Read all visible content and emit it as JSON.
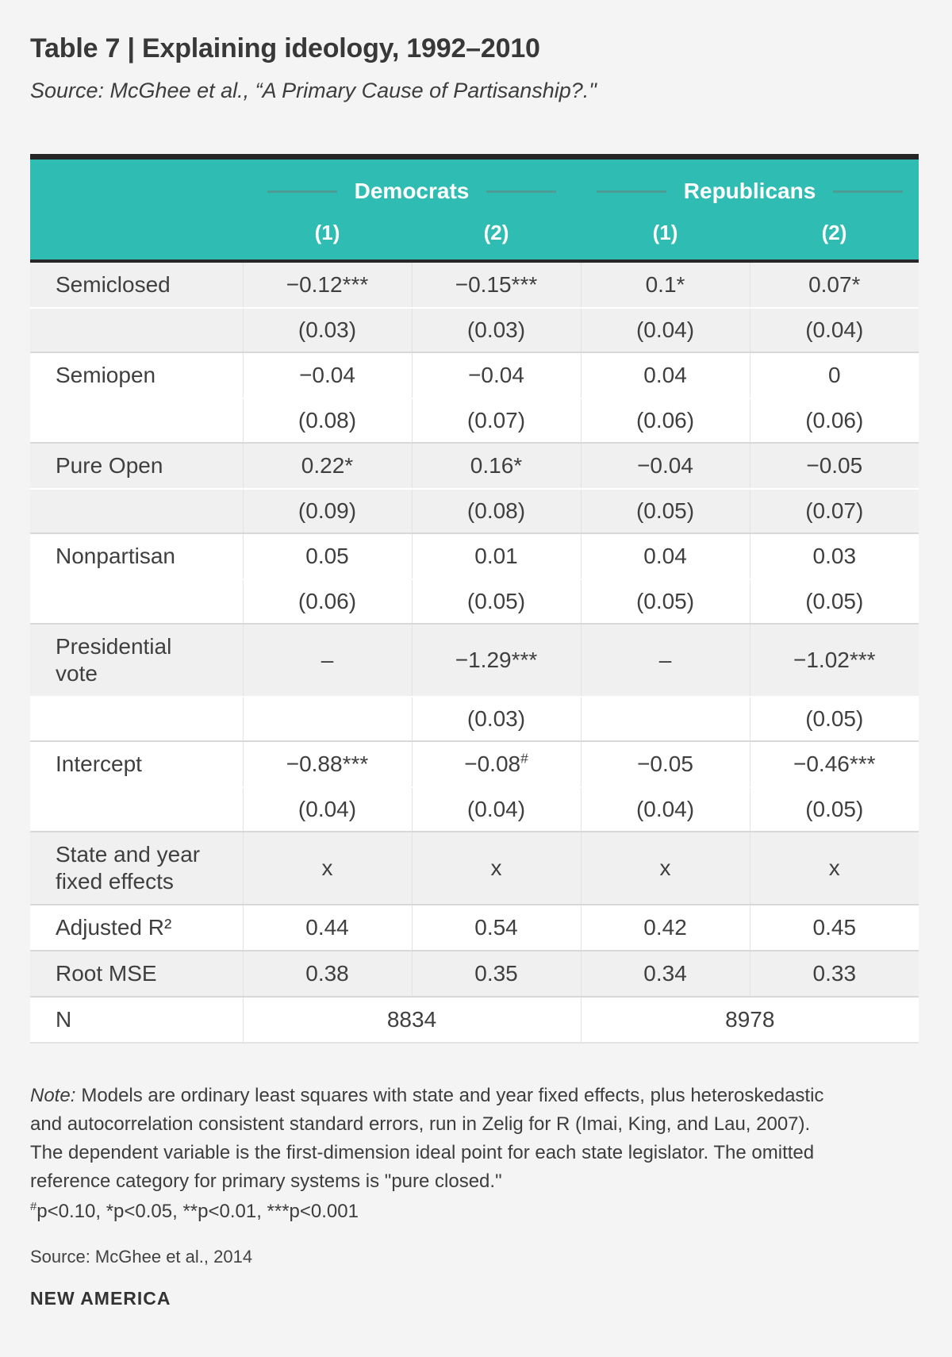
{
  "header": {
    "title": "Table 7 | Explaining ideology, 1992–2010",
    "source_citation": "Source: McGhee et al., “A Primary Cause of Partisanship?.\""
  },
  "table": {
    "column_groups": [
      "Democrats",
      "Republicans"
    ],
    "column_headers": [
      "(1)",
      "(2)",
      "(1)",
      "(2)"
    ],
    "rows": [
      {
        "label": "Semiclosed",
        "shaded": true,
        "cells": [
          "−0.12***",
          "−0.15***",
          "0.1*",
          "0.07*"
        ]
      },
      {
        "label": "",
        "shaded": true,
        "cells": [
          "(0.03)",
          "(0.03)",
          "(0.04)",
          "(0.04)"
        ]
      },
      {
        "label": "Semiopen",
        "shaded": false,
        "cells": [
          "−0.04",
          "−0.04",
          "0.04",
          "0"
        ]
      },
      {
        "label": "",
        "shaded": false,
        "cells": [
          "(0.08)",
          "(0.07)",
          "(0.06)",
          "(0.06)"
        ]
      },
      {
        "label": "Pure Open",
        "shaded": true,
        "cells": [
          "0.22*",
          "0.16*",
          "−0.04",
          "−0.05"
        ]
      },
      {
        "label": "",
        "shaded": true,
        "cells": [
          "(0.09)",
          "(0.08)",
          "(0.05)",
          "(0.07)"
        ]
      },
      {
        "label": "Nonpartisan",
        "shaded": false,
        "cells": [
          "0.05",
          "0.01",
          "0.04",
          "0.03"
        ]
      },
      {
        "label": "",
        "shaded": false,
        "cells": [
          "(0.06)",
          "(0.05)",
          "(0.05)",
          "(0.05)"
        ]
      },
      {
        "label": "Presidential vote",
        "shaded": true,
        "cells": [
          "–",
          "−1.29***",
          "–",
          "−1.02***"
        ]
      },
      {
        "label": "",
        "shaded": false,
        "cells": [
          "",
          "(0.03)",
          "",
          "(0.05)"
        ]
      },
      {
        "label": "Intercept",
        "shaded": false,
        "cells": [
          "−0.88***",
          {
            "text": "−0.08",
            "sup": "#"
          },
          "−0.05",
          "−0.46***"
        ]
      },
      {
        "label": "",
        "shaded": false,
        "cells": [
          "(0.04)",
          "(0.04)",
          "(0.04)",
          "(0.05)"
        ]
      },
      {
        "label": "State and year fixed effects",
        "shaded": true,
        "cells": [
          "x",
          "x",
          "x",
          "x"
        ]
      },
      {
        "label": "Adjusted R²",
        "shaded": false,
        "cells": [
          "0.44",
          "0.54",
          "0.42",
          "0.45"
        ]
      },
      {
        "label": "Root MSE",
        "shaded": true,
        "cells": [
          "0.38",
          "0.35",
          "0.34",
          "0.33"
        ]
      },
      {
        "label": "N",
        "shaded": false,
        "span": true,
        "cells": [
          "8834",
          "8978"
        ]
      }
    ]
  },
  "footer": {
    "note_label": "Note:",
    "note_text": "Models are ordinary least squares with state and year fixed effects, plus heteroskedastic and autocorrelation consistent standard errors, run in Zelig for R (Imai, King, and Lau, 2007). The dependent variable is the first-dimension ideal point for each state legislator. The omitted reference category for primary systems is \"pure closed.\"",
    "significance_sup": "#",
    "significance_text": "p<0.10, *p<0.05, **p<0.01, ***p<0.001",
    "source_line": "Source: McGhee et al., 2014",
    "brand": "NEW AMERICA"
  },
  "colors": {
    "accent_teal": "#2fbcb3",
    "dark_border": "#252525",
    "shaded_row": "#f0f0f0"
  }
}
